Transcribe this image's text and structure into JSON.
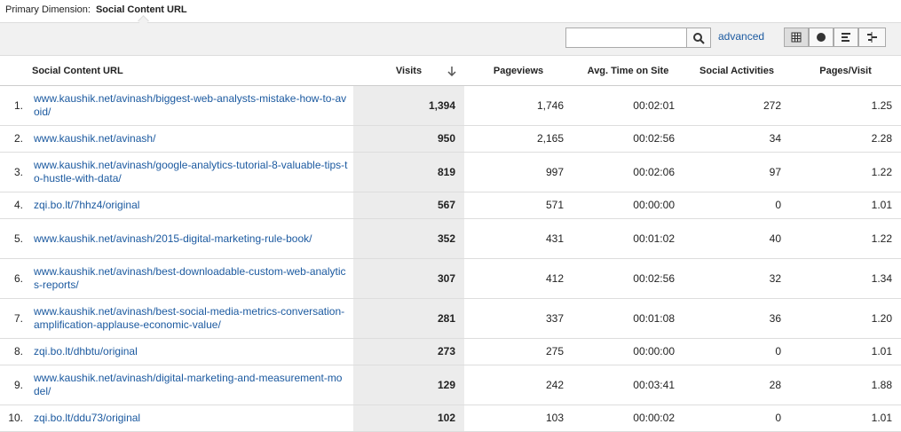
{
  "header": {
    "label": "Primary Dimension:",
    "value": "Social Content URL"
  },
  "toolbar": {
    "advanced": "advanced"
  },
  "table": {
    "columns": [
      "Social Content URL",
      "Visits",
      "Pageviews",
      "Avg. Time on Site",
      "Social Activities",
      "Pages/Visit"
    ],
    "rows": [
      [
        "1.",
        "www.kaushik.net/avinash/biggest-web-analysts-mistake-how-to-avoid/",
        "1,394",
        "1,746",
        "00:02:01",
        "272",
        "1.25"
      ],
      [
        "2.",
        "www.kaushik.net/avinash/",
        "950",
        "2,165",
        "00:02:56",
        "34",
        "2.28"
      ],
      [
        "3.",
        "www.kaushik.net/avinash/google-analytics-tutorial-8-valuable-tips-to-hustle-with-data/",
        "819",
        "997",
        "00:02:06",
        "97",
        "1.22"
      ],
      [
        "4.",
        "zqi.bo.lt/7hhz4/original",
        "567",
        "571",
        "00:00:00",
        "0",
        "1.01"
      ],
      [
        "5.",
        "www.kaushik.net/avinash/2015-digital-marketing-rule-book/",
        "352",
        "431",
        "00:01:02",
        "40",
        "1.22"
      ],
      [
        "6.",
        "www.kaushik.net/avinash/best-downloadable-custom-web-analytics-reports/",
        "307",
        "412",
        "00:02:56",
        "32",
        "1.34"
      ],
      [
        "7.",
        "www.kaushik.net/avinash/best-social-media-metrics-conversation-amplification-applause-economic-value/",
        "281",
        "337",
        "00:01:08",
        "36",
        "1.20"
      ],
      [
        "8.",
        "zqi.bo.lt/dhbtu/original",
        "273",
        "275",
        "00:00:00",
        "0",
        "1.01"
      ],
      [
        "9.",
        "www.kaushik.net/avinash/digital-marketing-and-measurement-model/",
        "129",
        "242",
        "00:03:41",
        "28",
        "1.88"
      ],
      [
        "10.",
        "zqi.bo.lt/ddu73/original",
        "102",
        "103",
        "00:00:02",
        "0",
        "1.01"
      ]
    ]
  }
}
